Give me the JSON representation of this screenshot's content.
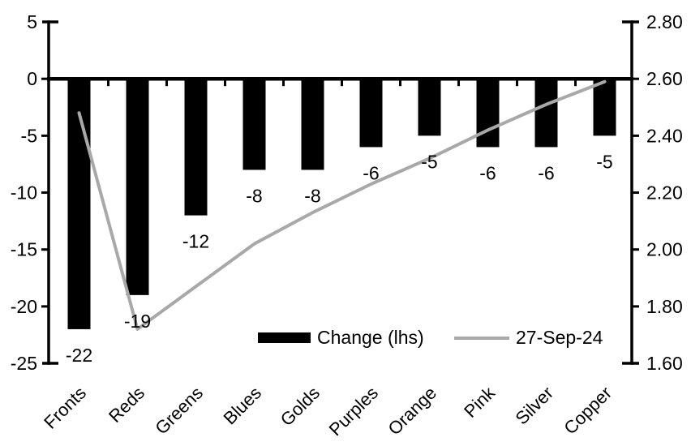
{
  "chart_data": {
    "type": "combo",
    "title": "",
    "categories": [
      "Fronts",
      "Reds",
      "Greens",
      "Blues",
      "Golds",
      "Purples",
      "Orange",
      "Pink",
      "Silver",
      "Copper"
    ],
    "series": [
      {
        "name": "Change (lhs)",
        "type": "bar",
        "axis": "left",
        "color": "#000000",
        "values": [
          -22,
          -19,
          -12,
          -8,
          -8,
          -6,
          -5,
          -6,
          -6,
          -5
        ],
        "data_labels": [
          "-22",
          "-19",
          "-12",
          "-8",
          "-8",
          "-6",
          "-5",
          "-6",
          "-6",
          "-5"
        ]
      },
      {
        "name": "27-Sep-24",
        "type": "line",
        "axis": "right",
        "color": "#a8a8a8",
        "values": [
          2.48,
          1.72,
          1.87,
          2.02,
          2.13,
          2.23,
          2.32,
          2.42,
          2.51,
          2.59
        ]
      }
    ],
    "left_axis": {
      "values": [
        5,
        0,
        -5,
        -10,
        -15,
        -20,
        -25
      ],
      "labels": [
        "5",
        "0",
        "-5",
        "-10",
        "-15",
        "-20",
        "-25"
      ],
      "range": [
        -25,
        5
      ]
    },
    "right_axis": {
      "values": [
        2.8,
        2.6,
        2.4,
        2.2,
        2.0,
        1.8,
        1.6
      ],
      "labels": [
        "2.80",
        "2.60",
        "2.40",
        "2.20",
        "2.00",
        "1.80",
        "1.60"
      ],
      "range": [
        1.6,
        2.8
      ]
    },
    "legend": {
      "position": "inside-bottom",
      "items": [
        {
          "label": "Change (lhs)",
          "swatch": "bar",
          "color": "#000000"
        },
        {
          "label": "27-Sep-24",
          "swatch": "line",
          "color": "#a8a8a8"
        }
      ]
    },
    "grid": false
  },
  "colors": {
    "background": "#ffffff",
    "text": "#000000",
    "axis": "#000000",
    "bar": "#000000",
    "line": "#a8a8a8"
  }
}
